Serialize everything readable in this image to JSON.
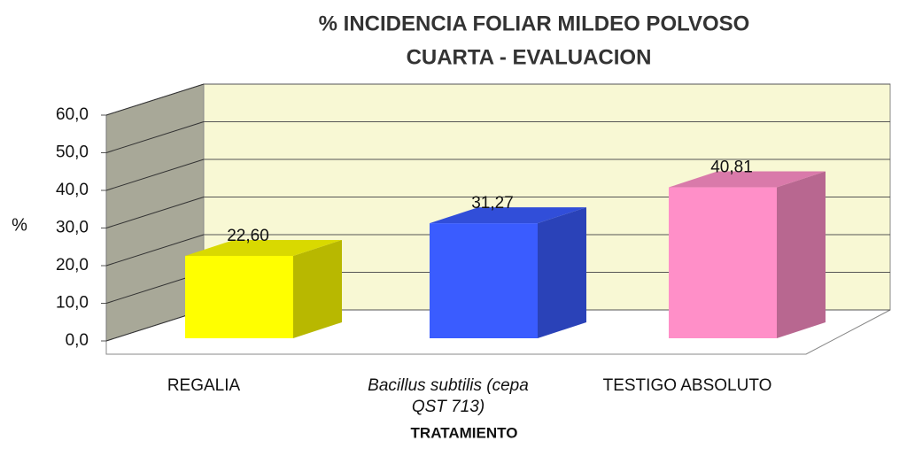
{
  "chart_data": {
    "type": "bar3d",
    "title": "% INCIDENCIA  FOLIAR MILDEO POLVOSO",
    "subtitle": "CUARTA - EVALUACION",
    "y_label": "%",
    "x_label": "TRATAMIENTO",
    "categories": [
      "REGALIA",
      "Bacillus subtilis (cepa QST 713)",
      "TESTIGO ABSOLUTO"
    ],
    "italic_categories": [
      false,
      true,
      false
    ],
    "values": [
      22.6,
      31.27,
      40.81
    ],
    "value_labels": [
      "22,60",
      "31,27",
      "40,81"
    ],
    "colors": [
      "#ffff00",
      "#3a5cff",
      "#ff8fc8"
    ],
    "ylim": [
      0,
      60
    ],
    "yticks": [
      {
        "value": 0,
        "label": "0,0"
      },
      {
        "value": 10,
        "label": "10,0"
      },
      {
        "value": 20,
        "label": "20,0"
      },
      {
        "value": 30,
        "label": "30,0"
      },
      {
        "value": 40,
        "label": "40,0"
      },
      {
        "value": 50,
        "label": "50,0"
      },
      {
        "value": 60,
        "label": "60,0"
      }
    ],
    "grid": true
  }
}
